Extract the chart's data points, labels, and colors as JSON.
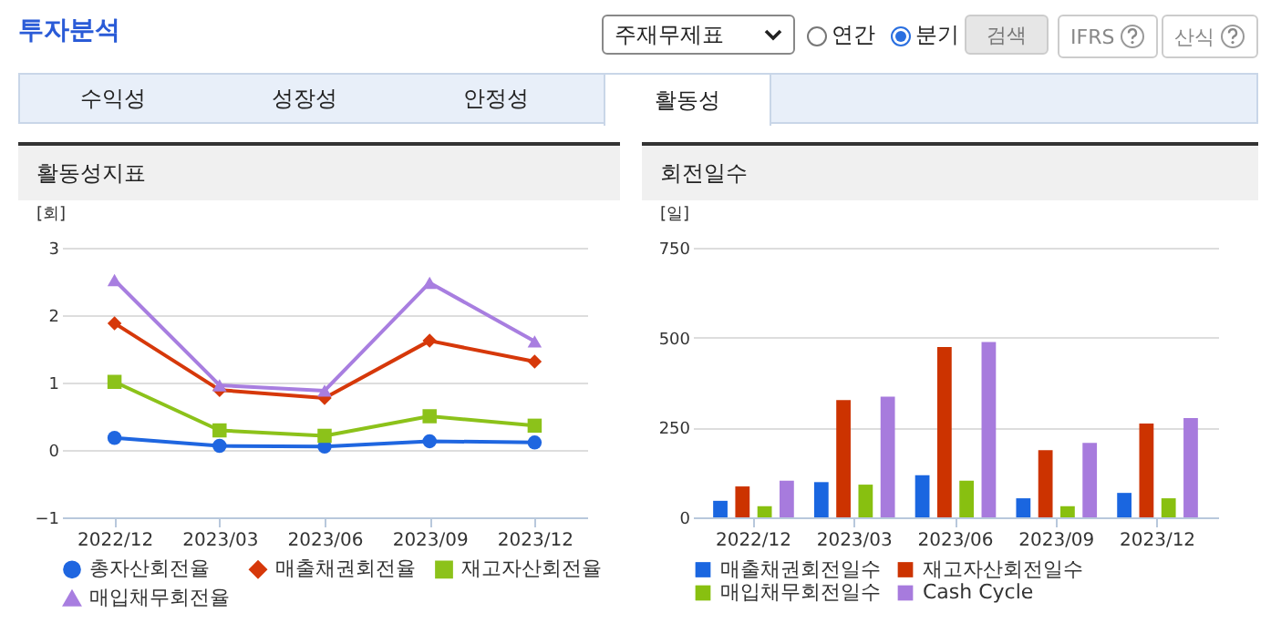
{
  "chart_data": [
    {
      "type": "other",
      "title": "투자분석",
      "annotations": [
        "주재무제표",
        "연간",
        "분기",
        "검색",
        "IFRS",
        "산식",
        "수익성",
        "성장성",
        "안정성",
        "활동성"
      ]
    },
    {
      "type": "line",
      "title": "활동성지표",
      "ylabel": "[회]",
      "categories": [
        "2022/12",
        "2023/03",
        "2023/06",
        "2023/09",
        "2023/12"
      ],
      "ylim": [
        -1,
        3
      ],
      "yticks": [
        -1,
        0,
        1,
        2,
        3
      ],
      "grid": "y",
      "legend": "bottom",
      "series": [
        {
          "name": "총자산회전율",
          "color": "#1f66e0",
          "marker": "circle",
          "values": [
            0.18,
            0.06,
            0.05,
            0.13,
            0.11
          ]
        },
        {
          "name": "매출채권회전율",
          "color": "#d6380a",
          "marker": "diamond",
          "values": [
            1.88,
            0.89,
            0.77,
            1.62,
            1.31
          ]
        },
        {
          "name": "재고자산회전율",
          "color": "#8cc21a",
          "marker": "square",
          "values": [
            1.01,
            0.29,
            0.21,
            0.5,
            0.36
          ]
        },
        {
          "name": "매입채무회전율",
          "color": "#a87ee0",
          "marker": "triangle",
          "values": [
            2.52,
            0.96,
            0.88,
            2.48,
            1.61
          ]
        }
      ]
    },
    {
      "type": "bar",
      "title": "회전일수",
      "ylabel": "[일]",
      "categories": [
        "2022/12",
        "2023/03",
        "2023/06",
        "2023/09",
        "2023/12"
      ],
      "ylim": [
        0,
        750
      ],
      "yticks": [
        0,
        250,
        500,
        750
      ],
      "grid": "y",
      "legend": "bottom",
      "series": [
        {
          "name": "매출채권회전일수",
          "color": "#1a66e0",
          "values": [
            46,
            98,
            117,
            53,
            68
          ]
        },
        {
          "name": "재고자산회전일수",
          "color": "#cc3300",
          "values": [
            86,
            326,
            474,
            187,
            261
          ]
        },
        {
          "name": "매입채무회전일수",
          "color": "#88c010",
          "values": [
            31,
            91,
            102,
            31,
            53
          ]
        },
        {
          "name": "Cash Cycle",
          "color": "#a77bdd",
          "values": [
            102,
            336,
            488,
            207,
            276
          ]
        }
      ]
    }
  ]
}
